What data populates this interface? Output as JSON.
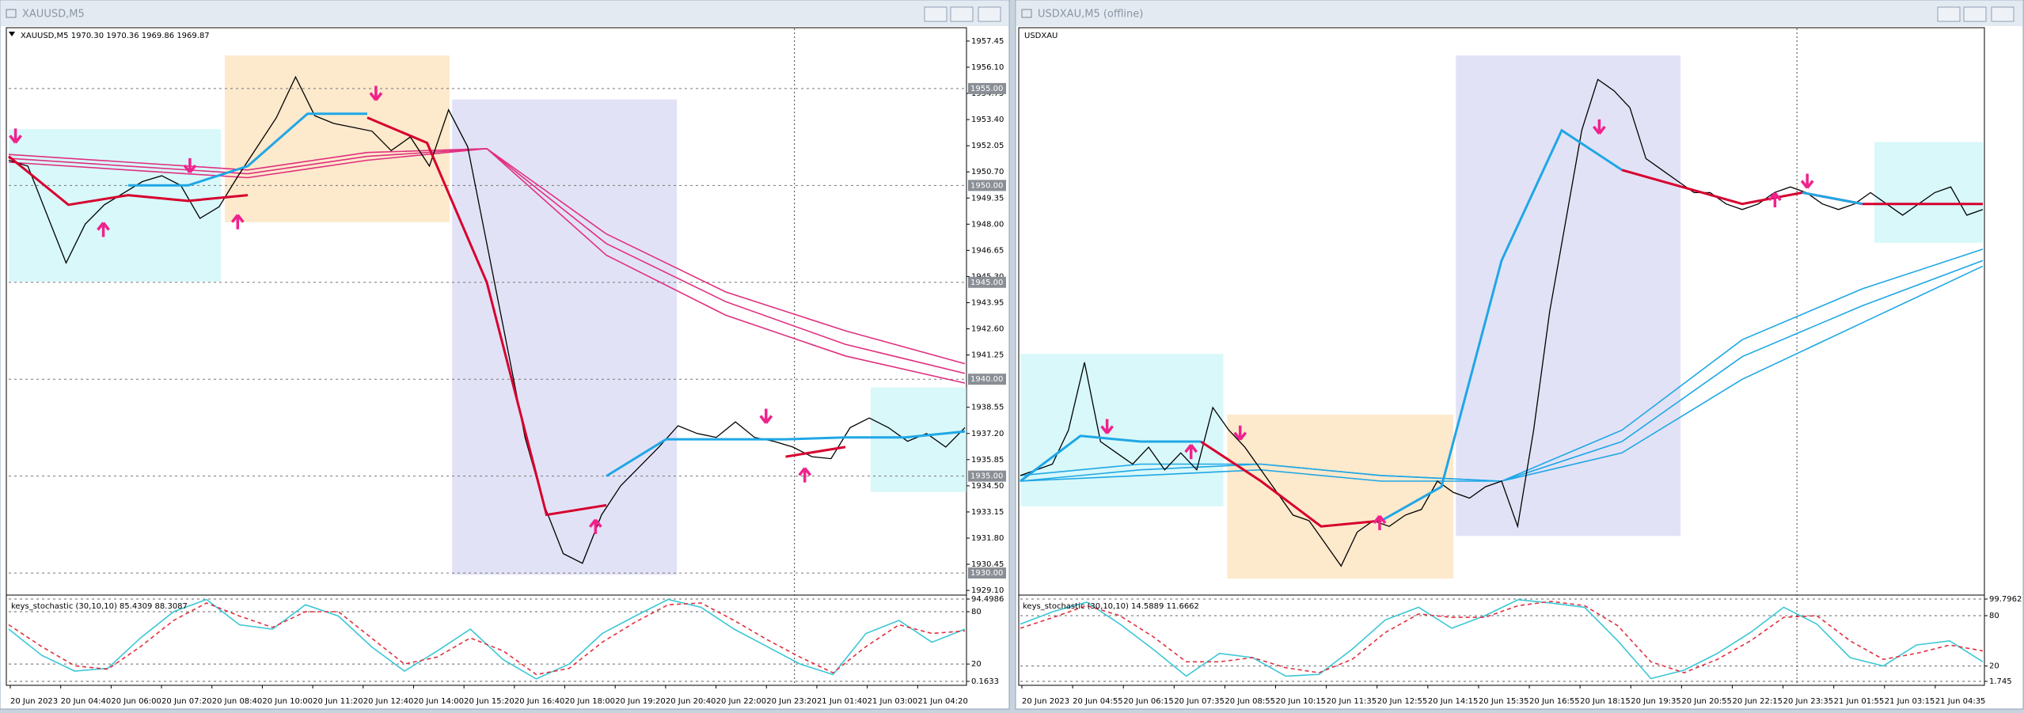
{
  "windows": [
    {
      "title": "XAUUSD,M5"
    },
    {
      "title": "USDXAU,M5 (offline)"
    }
  ],
  "chart_data": [
    {
      "type": "line",
      "title": "XAUUSD,M5  1970.30 1970.36 1969.86 1969.87",
      "ylim": [
        1928.9,
        1958.1
      ],
      "yticks": [
        {
          "value": 1957.45,
          "label": "1957.45"
        },
        {
          "value": 1956.1,
          "label": "1956.10"
        },
        {
          "value": 1954.75,
          "label": "1954.75"
        },
        {
          "value": 1953.4,
          "label": "1953.40"
        },
        {
          "value": 1952.05,
          "label": "1952.05"
        },
        {
          "value": 1950.7,
          "label": "1950.70"
        },
        {
          "value": 1949.35,
          "label": "1949.35"
        },
        {
          "value": 1948,
          "label": "1948.00"
        },
        {
          "value": 1946.65,
          "label": "1946.65"
        },
        {
          "value": 1945.3,
          "label": "1945.30"
        },
        {
          "value": 1943.95,
          "label": "1943.95"
        },
        {
          "value": 1942.6,
          "label": "1942.60"
        },
        {
          "value": 1941.25,
          "label": "1941.25"
        },
        {
          "value": 1938.55,
          "label": "1938.55"
        },
        {
          "value": 1937.2,
          "label": "1937.20"
        },
        {
          "value": 1935.85,
          "label": "1935.85"
        },
        {
          "value": 1934.5,
          "label": "1934.50"
        },
        {
          "value": 1933.15,
          "label": "1933.15"
        },
        {
          "value": 1931.8,
          "label": "1931.80"
        },
        {
          "value": 1930.45,
          "label": "1930.45"
        },
        {
          "value": 1929.1,
          "label": "1929.10"
        }
      ],
      "hlines": [
        {
          "value": 1955,
          "label": "1955.00"
        },
        {
          "value": 1950,
          "label": "1950.00"
        },
        {
          "value": 1945,
          "label": "1945.00"
        },
        {
          "value": 1940,
          "label": "1940.00"
        },
        {
          "value": 1935,
          "label": "1935.00"
        },
        {
          "value": 1930,
          "label": "1930.00"
        }
      ],
      "grid": false,
      "series": [
        {
          "color": "#e0307f",
          "values": [
            1951.6,
            1951.2,
            1950.8,
            1951.7,
            1951.9,
            1947.5,
            1944.5,
            1942.5,
            1940.8
          ]
        },
        {
          "color": "#e0307f",
          "values": [
            1951.4,
            1951.0,
            1950.6,
            1951.5,
            1951.9,
            1947.0,
            1944.0,
            1941.8,
            1940.3
          ]
        },
        {
          "color": "#e0307f",
          "values": [
            1951.2,
            1950.8,
            1950.4,
            1951.3,
            1951.9,
            1946.4,
            1943.3,
            1941.2,
            1939.8
          ]
        },
        {
          "color": "#000000",
          "values": [
            1951.3,
            1951.0,
            1948.5,
            1946.0,
            1948.0,
            1949.0,
            1949.6,
            1950.2,
            1950.5,
            1950.0,
            1948.3,
            1948.9,
            1950.5,
            1952.0,
            1953.5,
            1955.6,
            1953.6,
            1953.2,
            1953.0,
            1952.8,
            1951.8,
            1952.5,
            1951.0,
            1953.9,
            1952.0,
            1947.0,
            1942.0,
            1937.0,
            1933.5,
            1931.0,
            1930.5,
            1933.0,
            1934.5,
            1935.5,
            1936.5,
            1937.6,
            1937.2,
            1937.0,
            1937.8,
            1937.0,
            1936.8,
            1936.5,
            1936.0,
            1935.9,
            1937.5,
            1938.0,
            1937.5,
            1936.8,
            1937.2,
            1936.5,
            1937.5
          ]
        },
        {
          "color": "#d6002e",
          "values": [
            1951.5,
            1949.0,
            1949.5,
            1949.2,
            1949.5,
            null,
            1953.5,
            1952.2,
            1945,
            1933,
            1933.5,
            null,
            null,
            1936,
            1936.5,
            null,
            null
          ]
        },
        {
          "color": "#1fa7e6",
          "values": [
            null,
            null,
            1950.0,
            1950.0,
            1951.0,
            1953.7,
            1953.7,
            null,
            null,
            null,
            1935,
            1936.9,
            1936.9,
            1936.9,
            1937.0,
            1937.0,
            1937.3
          ]
        }
      ]
    },
    {
      "type": "line",
      "title": "keys_stochastic (30,10,10) 85.4309 88.3087",
      "ylim": [
        0.1633,
        94.4986
      ],
      "yticks": [
        94.4986,
        80,
        20,
        0.1633
      ],
      "grid": true,
      "series": [
        {
          "color": "#3cc7d6",
          "values": [
            60,
            30,
            12,
            15,
            50,
            80,
            94,
            65,
            60,
            88,
            75,
            40,
            12,
            35,
            60,
            25,
            3,
            20,
            55,
            75,
            94,
            85,
            60,
            40,
            20,
            8,
            55,
            70,
            45,
            60
          ]
        },
        {
          "color": "#e03040",
          "dash": true,
          "values": [
            65,
            40,
            18,
            14,
            40,
            70,
            90,
            75,
            62,
            80,
            80,
            50,
            20,
            28,
            50,
            35,
            8,
            15,
            45,
            68,
            88,
            90,
            70,
            48,
            28,
            10,
            40,
            65,
            55,
            58
          ]
        }
      ],
      "time_labels": [
        "20 Jun 2023",
        "20 Jun 04:40",
        "20 Jun 06:00",
        "20 Jun 07:20",
        "20 Jun 08:40",
        "20 Jun 10:00",
        "20 Jun 11:20",
        "20 Jun 12:40",
        "20 Jun 14:00",
        "20 Jun 15:20",
        "20 Jun 16:40",
        "20 Jun 18:00",
        "20 Jun 19:20",
        "20 Jun 20:40",
        "20 Jun 22:00",
        "20 Jun 23:20",
        "21 Jun 01:40",
        "21 Jun 03:00",
        "21 Jun 04:20"
      ]
    },
    {
      "type": "line",
      "title": "USDXAU",
      "ylim": [
        0,
        100
      ],
      "grid": false,
      "series": [
        {
          "color": "#1fa7e6",
          "values": [
            21,
            23,
            23,
            21,
            20,
            29,
            45,
            54,
            61
          ]
        },
        {
          "color": "#1fa7e6",
          "values": [
            20,
            22,
            23,
            21,
            20,
            27,
            42,
            51,
            59
          ]
        },
        {
          "color": "#1fa7e6",
          "values": [
            20,
            21,
            22,
            20,
            20,
            25,
            38,
            48,
            58
          ]
        },
        {
          "color": "#000000",
          "values": [
            21,
            22,
            23,
            29,
            41,
            27,
            25,
            23,
            26,
            22,
            25,
            22,
            33,
            29,
            26,
            22,
            18,
            14,
            13,
            9,
            5,
            11,
            13,
            12,
            14,
            15,
            20,
            18,
            17,
            19,
            20,
            12,
            29,
            50,
            66,
            82,
            91,
            89,
            86,
            77,
            75,
            73,
            71,
            71,
            69,
            68,
            69,
            71,
            72,
            71,
            69,
            68,
            69,
            71,
            69,
            67,
            69,
            71,
            72,
            67,
            68
          ]
        },
        {
          "color": "#d6002e",
          "values": [
            null,
            null,
            null,
            27,
            20,
            12,
            13,
            null,
            null,
            null,
            75,
            72,
            69,
            71,
            69,
            69,
            69
          ]
        },
        {
          "color": "#1fa7e6",
          "values": [
            20,
            28,
            27,
            27,
            null,
            null,
            13,
            19,
            59,
            82,
            75,
            null,
            null,
            71,
            69,
            null,
            null
          ]
        }
      ]
    },
    {
      "type": "line",
      "title": "keys_stochastic (30,10,10) 14.5889 11.6662",
      "ylim": [
        1.745,
        99.7962
      ],
      "yticks": [
        99.7962,
        80,
        20,
        1.745
      ],
      "grid": true,
      "series": [
        {
          "color": "#3cc7d6",
          "values": [
            70,
            85,
            96,
            70,
            40,
            8,
            35,
            30,
            8,
            10,
            40,
            75,
            90,
            65,
            80,
            99,
            95,
            90,
            50,
            5,
            15,
            35,
            60,
            90,
            70,
            30,
            20,
            45,
            50,
            25
          ]
        },
        {
          "color": "#e03040",
          "dash": true,
          "values": [
            65,
            78,
            92,
            80,
            55,
            25,
            25,
            30,
            18,
            12,
            28,
            60,
            82,
            78,
            78,
            92,
            97,
            92,
            68,
            25,
            12,
            28,
            50,
            78,
            80,
            50,
            28,
            35,
            45,
            38
          ]
        }
      ],
      "time_labels": [
        "20 Jun 2023",
        "20 Jun 04:55",
        "20 Jun 06:15",
        "20 Jun 07:35",
        "20 Jun 08:55",
        "20 Jun 10:15",
        "20 Jun 11:35",
        "20 Jun 12:55",
        "20 Jun 14:15",
        "20 Jun 15:35",
        "20 Jun 16:55",
        "20 Jun 18:15",
        "20 Jun 19:35",
        "20 Jun 20:55",
        "20 Jun 22:15",
        "20 Jun 23:35",
        "21 Jun 01:55",
        "21 Jun 03:15",
        "21 Jun 04:35"
      ]
    }
  ]
}
